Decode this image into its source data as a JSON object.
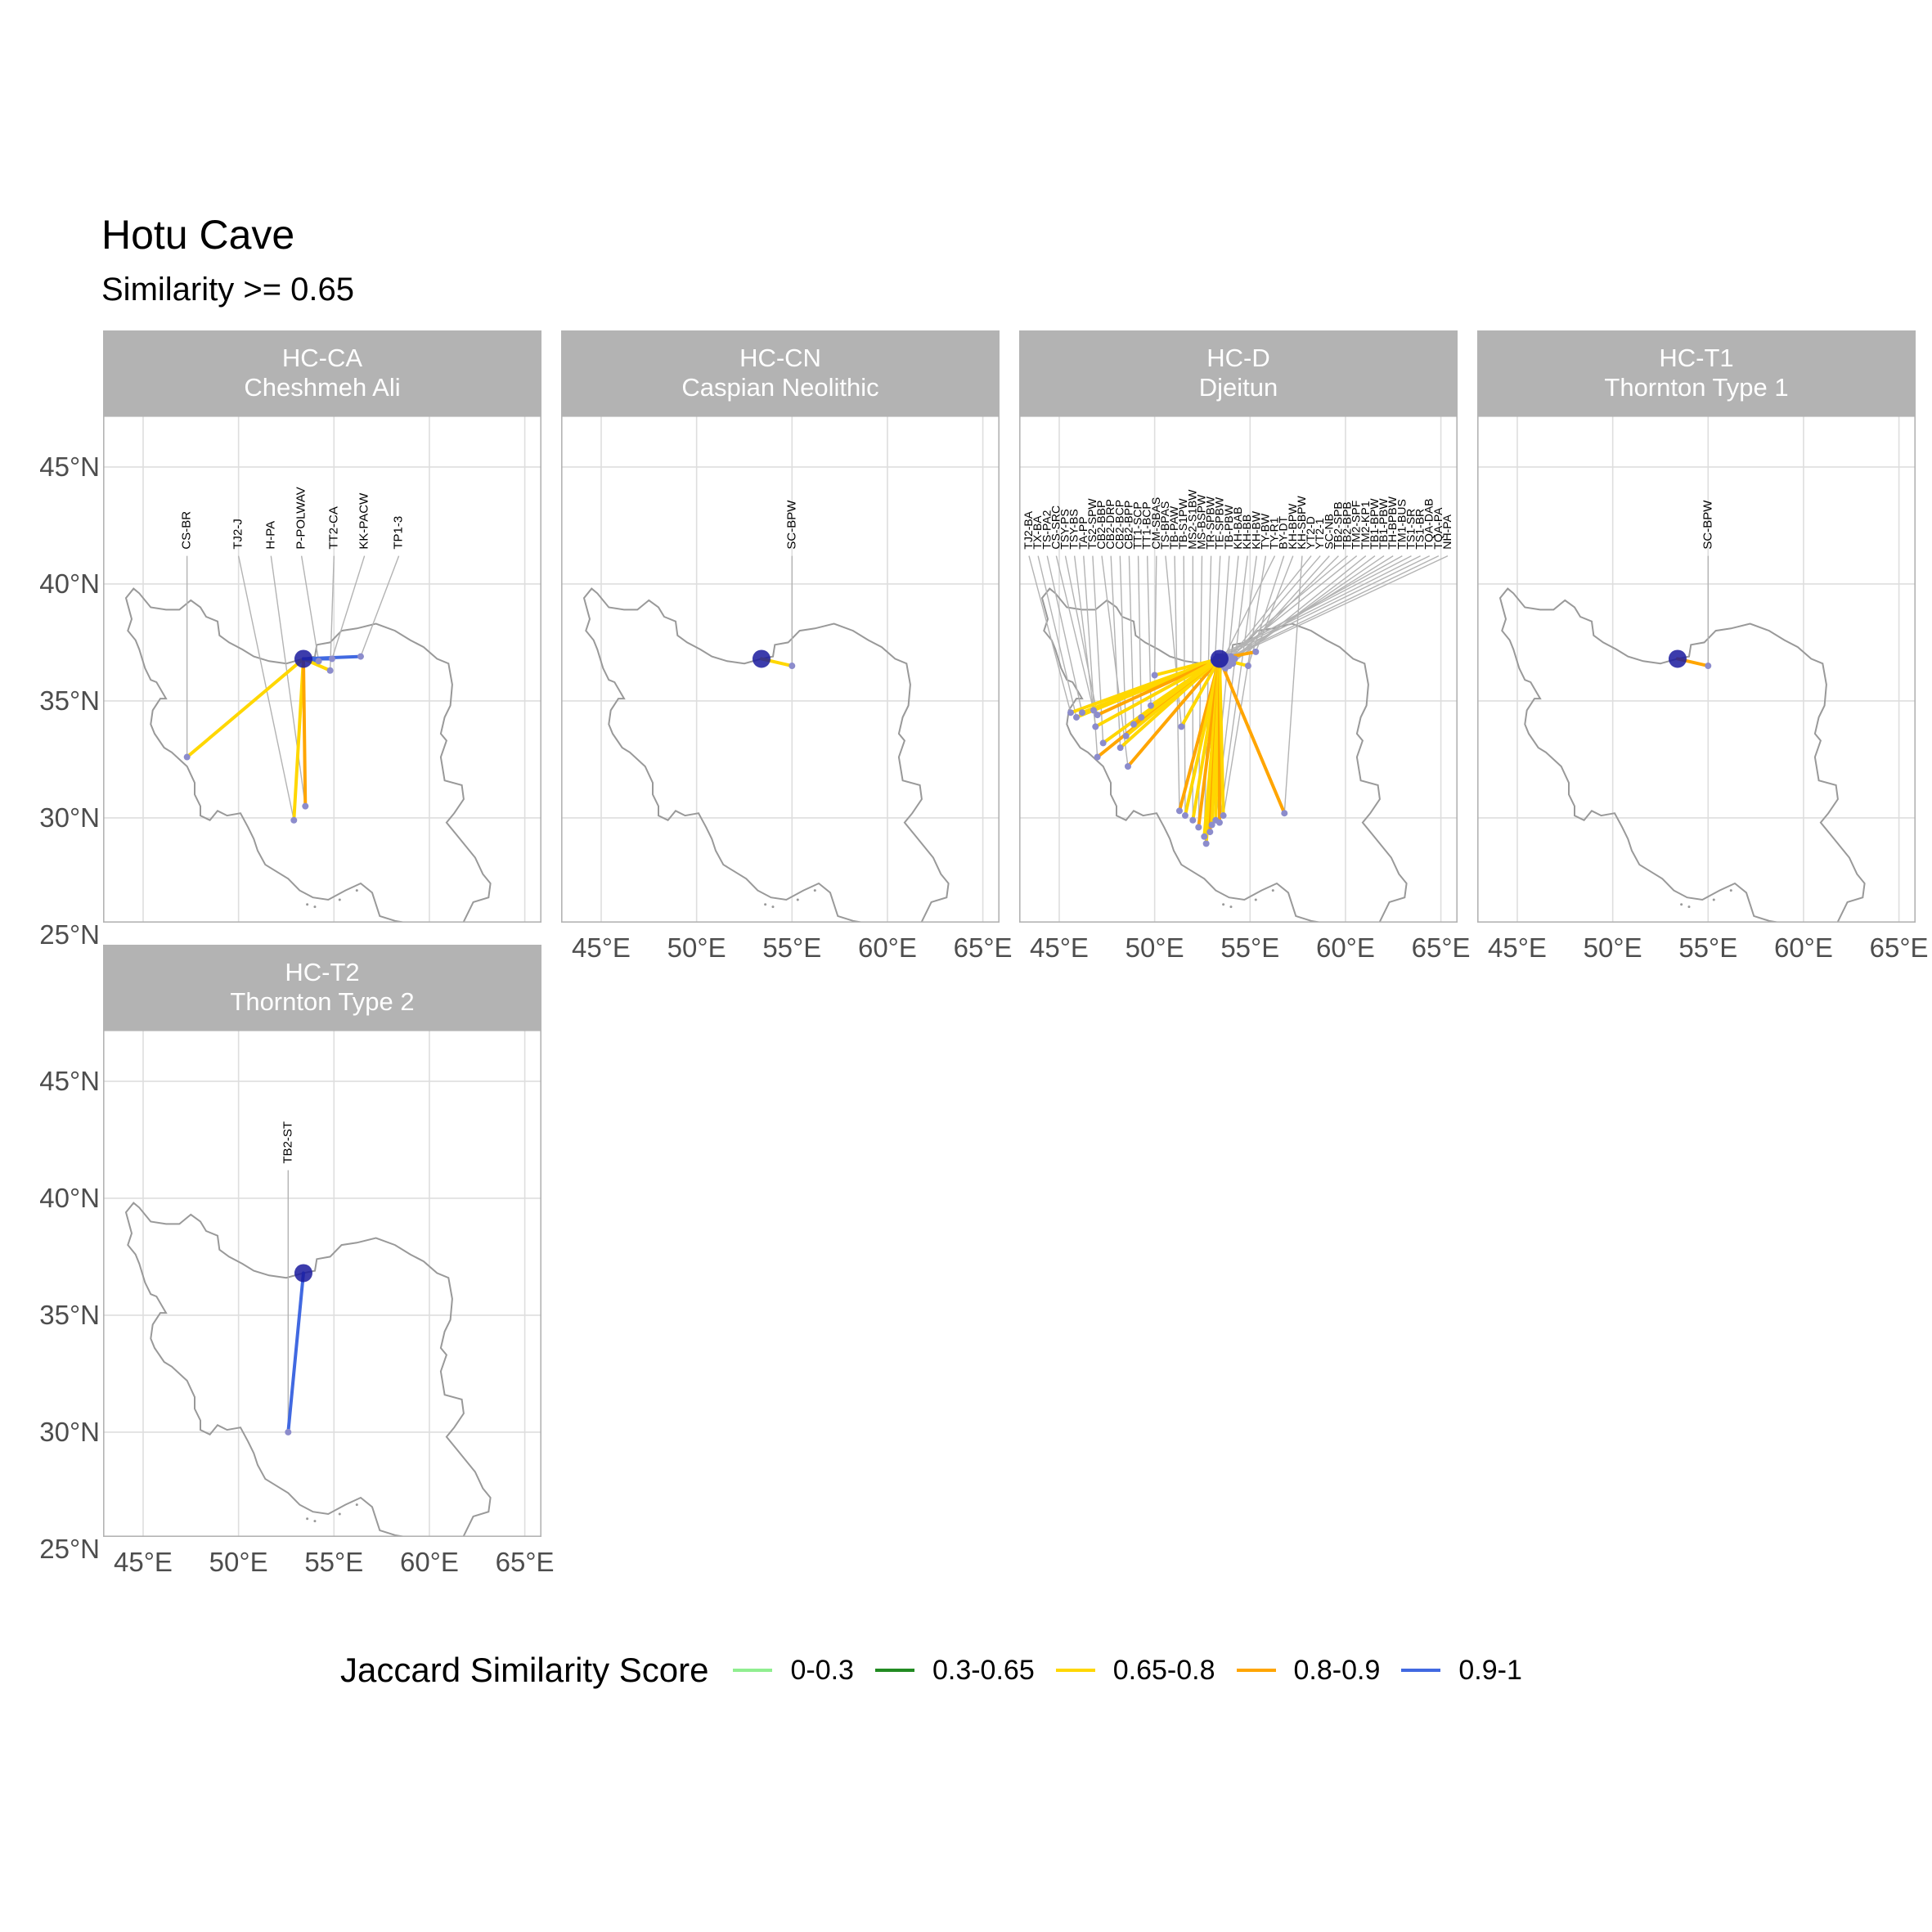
{
  "title": "Hotu Cave",
  "subtitle": "Similarity >= 0.65",
  "axes": {
    "y_ticks": [
      {
        "value": 45,
        "label": "45°N"
      },
      {
        "value": 40,
        "label": "40°N"
      },
      {
        "value": 35,
        "label": "35°N"
      },
      {
        "value": 30,
        "label": "30°N"
      },
      {
        "value": 25,
        "label": "25°N"
      }
    ],
    "x_ticks": [
      {
        "value": 45,
        "label": "45°E"
      },
      {
        "value": 50,
        "label": "50°E"
      },
      {
        "value": 55,
        "label": "55°E"
      },
      {
        "value": 60,
        "label": "60°E"
      },
      {
        "value": 65,
        "label": "65°E"
      }
    ]
  },
  "legend": {
    "title": "Jaccard Similarity Score",
    "items": [
      {
        "label": "0-0.3",
        "color": "#90ee90"
      },
      {
        "label": "0.3-0.65",
        "color": "#228b22"
      },
      {
        "label": "0.65-0.8",
        "color": "#ffd700"
      },
      {
        "label": "0.8-0.9",
        "color": "#ffa500"
      },
      {
        "label": "0.9-1",
        "color": "#4169e1"
      }
    ]
  },
  "colors": {
    "0.65-0.8": "#ffd700",
    "0.8-0.9": "#ffa500",
    "0.9-1": "#4169e1",
    "source_point": "#1a1a9e",
    "target_point": "#8c8ccc",
    "outline": "#999999"
  },
  "chart_data": {
    "type": "map",
    "source": {
      "lon": 53.4,
      "lat": 36.8
    },
    "panels": [
      {
        "code": "HC-CA",
        "name": "Cheshmeh Ali",
        "links": [
          {
            "label": "CS-BR",
            "lon": 47.3,
            "lat": 32.6,
            "cls": "0.65-0.8"
          },
          {
            "label": "TJ2-J",
            "lon": 52.9,
            "lat": 29.9,
            "cls": "0.65-0.8"
          },
          {
            "label": "H-PA",
            "lon": 53.5,
            "lat": 30.5,
            "cls": "0.8-0.9"
          },
          {
            "label": "P-POLWAV",
            "lon": 54.2,
            "lat": 36.7,
            "cls": "0.9-1"
          },
          {
            "label": "TT2-CA",
            "lon": 54.8,
            "lat": 36.3,
            "cls": "0.65-0.8"
          },
          {
            "label": "KK-PACW",
            "lon": 54.9,
            "lat": 36.8,
            "cls": "0.9-1"
          },
          {
            "label": "TP1-3",
            "lon": 56.4,
            "lat": 36.9,
            "cls": "0.9-1"
          }
        ]
      },
      {
        "code": "HC-CN",
        "name": "Caspian Neolithic",
        "links": [
          {
            "label": "SC-BPW",
            "lon": 55.0,
            "lat": 36.5,
            "cls": "0.65-0.8"
          }
        ]
      },
      {
        "code": "HC-D",
        "name": "Djeitun",
        "links": [
          {
            "label": "TJ2-BA",
            "lon": 45.6,
            "lat": 34.5,
            "cls": "0.65-0.8"
          },
          {
            "label": "TX-BA",
            "lon": 45.9,
            "lat": 34.3,
            "cls": "0.65-0.8"
          },
          {
            "label": "TS-PA2",
            "lon": 46.2,
            "lat": 34.5,
            "cls": "0.65-0.8"
          },
          {
            "label": "CS-SRC",
            "lon": 46.8,
            "lat": 34.6,
            "cls": "0.65-0.8"
          },
          {
            "label": "TSY-PS",
            "lon": 47.0,
            "lat": 34.4,
            "cls": "0.8-0.9"
          },
          {
            "label": "TSY-BS",
            "lon": 46.9,
            "lat": 33.9,
            "cls": "0.65-0.8"
          },
          {
            "label": "TA-PP",
            "lon": 47.0,
            "lat": 32.6,
            "cls": "0.8-0.9"
          },
          {
            "label": "TS2-SPW",
            "lon": 47.3,
            "lat": 33.2,
            "cls": "0.65-0.8"
          },
          {
            "label": "CB2-BBP",
            "lon": 48.6,
            "lat": 32.2,
            "cls": "0.8-0.9"
          },
          {
            "label": "CB2-DRP",
            "lon": 48.2,
            "lat": 33.0,
            "cls": "0.65-0.8"
          },
          {
            "label": "CB2-BCP",
            "lon": 48.5,
            "lat": 33.5,
            "cls": "0.65-0.8"
          },
          {
            "label": "CB2-BPP",
            "lon": 48.9,
            "lat": 34.0,
            "cls": "0.8-0.9"
          },
          {
            "label": "TT1-SCP",
            "lon": 49.3,
            "lat": 34.3,
            "cls": "0.65-0.8"
          },
          {
            "label": "TT1-BCP",
            "lon": 49.8,
            "lat": 34.8,
            "cls": "0.65-0.8"
          },
          {
            "label": "CM-SBAS",
            "lon": 50.0,
            "lat": 36.1,
            "cls": "0.65-0.8"
          },
          {
            "label": "TS-BPAS",
            "lon": 51.4,
            "lat": 33.9,
            "cls": "0.65-0.8"
          },
          {
            "label": "TB-PAW",
            "lon": 51.3,
            "lat": 30.3,
            "cls": "0.8-0.9"
          },
          {
            "label": "TB-S1PW",
            "lon": 51.6,
            "lat": 30.1,
            "cls": "0.65-0.8"
          },
          {
            "label": "MS2-S1BW",
            "lon": 52.0,
            "lat": 29.9,
            "cls": "0.65-0.8"
          },
          {
            "label": "MS-BSPW",
            "lon": 52.3,
            "lat": 29.6,
            "cls": "0.8-0.9"
          },
          {
            "label": "TR-SPBW",
            "lon": 52.6,
            "lat": 29.2,
            "cls": "0.65-0.8"
          },
          {
            "label": "TE-SPBW",
            "lon": 52.7,
            "lat": 28.9,
            "cls": "0.65-0.8"
          },
          {
            "label": "TB-PBW",
            "lon": 52.9,
            "lat": 29.4,
            "cls": "0.8-0.9"
          },
          {
            "label": "KH-BAB",
            "lon": 53.0,
            "lat": 29.7,
            "cls": "0.65-0.8"
          },
          {
            "label": "KH-BB",
            "lon": 53.2,
            "lat": 29.9,
            "cls": "0.65-0.8"
          },
          {
            "label": "KH-BW",
            "lon": 53.4,
            "lat": 29.8,
            "cls": "0.8-0.9"
          },
          {
            "label": "TY-BW",
            "lon": 53.6,
            "lat": 30.1,
            "cls": "0.65-0.8"
          },
          {
            "label": "TY-R1",
            "lon": 53.6,
            "lat": 36.8,
            "cls": "0.9-1"
          },
          {
            "label": "BY-DT",
            "lon": 54.9,
            "lat": 36.5,
            "cls": "0.65-0.8"
          },
          {
            "label": "KH-BPW",
            "lon": 55.3,
            "lat": 37.1,
            "cls": "0.8-0.9"
          },
          {
            "label": "KH-SBPW",
            "lon": 56.8,
            "lat": 30.2,
            "cls": "0.8-0.9"
          },
          {
            "label": "YT2-D",
            "lon": 53.7,
            "lat": 36.6,
            "cls": "0.65-0.8"
          },
          {
            "label": "YT2-1",
            "lon": 53.9,
            "lat": 36.7,
            "cls": "0.65-0.8"
          },
          {
            "label": "SC-NB",
            "lon": 54.1,
            "lat": 36.6,
            "cls": "0.65-0.8"
          },
          {
            "label": "TB2-SPB",
            "lon": 54.2,
            "lat": 36.8,
            "cls": "0.65-0.8"
          },
          {
            "label": "TB2-BPB",
            "lon": 53.8,
            "lat": 36.9,
            "cls": "0.65-0.8"
          },
          {
            "label": "TM2-SPF",
            "lon": 54.0,
            "lat": 36.9,
            "cls": "0.8-0.9"
          },
          {
            "label": "TM2-KP1",
            "lon": 53.9,
            "lat": 36.5,
            "cls": "0.65-0.8"
          },
          {
            "label": "TB1-BPW",
            "lon": 53.7,
            "lat": 36.4,
            "cls": "0.65-0.8"
          },
          {
            "label": "TB1-PBW",
            "lon": 53.6,
            "lat": 36.5,
            "cls": "0.65-0.8"
          },
          {
            "label": "TH-BPBW",
            "lon": 53.5,
            "lat": 36.6,
            "cls": "0.65-0.8"
          },
          {
            "label": "TM1-BUS",
            "lon": 53.5,
            "lat": 36.9,
            "cls": "0.65-0.8"
          },
          {
            "label": "TS1-SR",
            "lon": 53.3,
            "lat": 36.9,
            "cls": "0.65-0.8"
          },
          {
            "label": "TS1-BR",
            "lon": 53.2,
            "lat": 36.8,
            "cls": "0.65-0.8"
          },
          {
            "label": "TQA-DAB",
            "lon": 53.1,
            "lat": 36.7,
            "cls": "0.65-0.8"
          },
          {
            "label": "TQA-PA",
            "lon": 53.2,
            "lat": 36.6,
            "cls": "0.65-0.8"
          },
          {
            "label": "NH-PA",
            "lon": 53.3,
            "lat": 36.6,
            "cls": "0.65-0.8"
          }
        ]
      },
      {
        "code": "HC-T1",
        "name": "Thornton Type 1",
        "links": [
          {
            "label": "SC-BPW",
            "lon": 55.0,
            "lat": 36.5,
            "cls": "0.8-0.9"
          }
        ]
      },
      {
        "code": "HC-T2",
        "name": "Thornton Type 2",
        "links": [
          {
            "label": "TB2-ST",
            "lon": 52.6,
            "lat": 30.0,
            "cls": "0.9-1"
          }
        ]
      }
    ]
  }
}
